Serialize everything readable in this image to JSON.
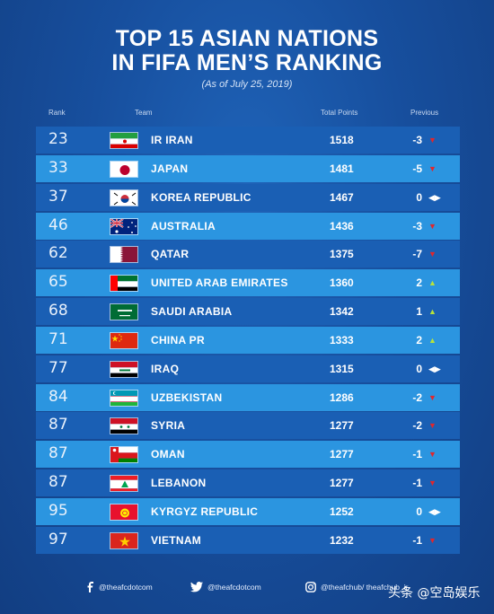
{
  "title_line1": "TOP 15 ASIAN NATIONS",
  "title_line2": "IN FIFA MEN’S  RANKING",
  "subtitle": "(As of July 25, 2019)",
  "headers": {
    "rank": "Rank",
    "team": "Team",
    "points": "Total Points",
    "previous": "Previous"
  },
  "rows": [
    {
      "rank": "23",
      "team": "IR IRAN",
      "points": "1518",
      "previous": "-3",
      "trend": "down",
      "flag": "iran"
    },
    {
      "rank": "33",
      "team": "JAPAN",
      "points": "1481",
      "previous": "-5",
      "trend": "down",
      "flag": "japan"
    },
    {
      "rank": "37",
      "team": "KOREA REPUBLIC",
      "points": "1467",
      "previous": "0",
      "trend": "same",
      "flag": "korea"
    },
    {
      "rank": "46",
      "team": "AUSTRALIA",
      "points": "1436",
      "previous": "-3",
      "trend": "down",
      "flag": "australia"
    },
    {
      "rank": "62",
      "team": "QATAR",
      "points": "1375",
      "previous": "-7",
      "trend": "down",
      "flag": "qatar"
    },
    {
      "rank": "65",
      "team": "UNITED ARAB EMIRATES",
      "points": "1360",
      "previous": "2",
      "trend": "up",
      "flag": "uae"
    },
    {
      "rank": "68",
      "team": "SAUDI ARABIA",
      "points": "1342",
      "previous": "1",
      "trend": "up",
      "flag": "saudi"
    },
    {
      "rank": "71",
      "team": "CHINA PR",
      "points": "1333",
      "previous": "2",
      "trend": "up",
      "flag": "china"
    },
    {
      "rank": "77",
      "team": "IRAQ",
      "points": "1315",
      "previous": "0",
      "trend": "same",
      "flag": "iraq"
    },
    {
      "rank": "84",
      "team": "UZBEKISTAN",
      "points": "1286",
      "previous": "-2",
      "trend": "down",
      "flag": "uzbekistan"
    },
    {
      "rank": "87",
      "team": "SYRIA",
      "points": "1277",
      "previous": "-2",
      "trend": "down",
      "flag": "syria"
    },
    {
      "rank": "87",
      "team": "OMAN",
      "points": "1277",
      "previous": "-1",
      "trend": "down",
      "flag": "oman"
    },
    {
      "rank": "87",
      "team": "LEBANON",
      "points": "1277",
      "previous": "-1",
      "trend": "down",
      "flag": "lebanon"
    },
    {
      "rank": "95",
      "team": "KYRGYZ REPUBLIC",
      "points": "1252",
      "previous": "0",
      "trend": "same",
      "flag": "kyrgyz"
    },
    {
      "rank": "97",
      "team": "VIETNAM",
      "points": "1232",
      "previous": "-1",
      "trend": "down",
      "flag": "vietnam"
    }
  ],
  "footer": {
    "facebook": "@theafcdotcom",
    "twitter": "@theafcdotcom",
    "instagram": "@theafchub/ theafchub_ir"
  },
  "watermark": "头条 @空岛娱乐",
  "colors": {
    "row_dark": "#1a5fb4",
    "row_light": "#2b95e0",
    "down": "#e2262b",
    "up": "#b7e33a"
  }
}
